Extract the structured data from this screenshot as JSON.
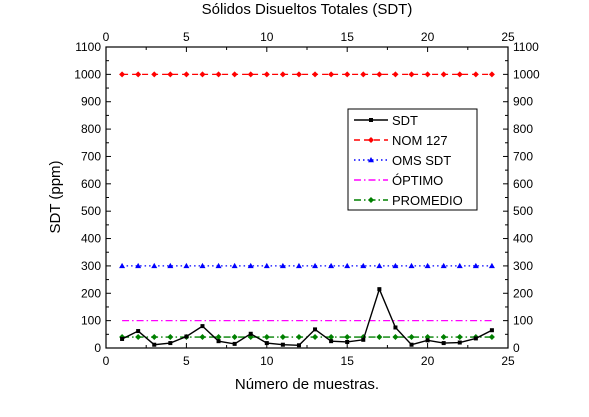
{
  "chart_data": {
    "type": "line",
    "title": "Sólidos Disueltos Totales (SDT)",
    "xlabel": "Número de muestras.",
    "ylabel": "SDT (ppm)",
    "xlim": [
      0,
      25
    ],
    "ylim": [
      0,
      1100
    ],
    "x_ticks": [
      0,
      5,
      10,
      15,
      20,
      25
    ],
    "y_ticks": [
      0,
      100,
      200,
      300,
      400,
      500,
      600,
      700,
      800,
      900,
      1000,
      1100
    ],
    "grid": false,
    "mirror_axes": true,
    "legend_position": "right",
    "x": [
      1,
      2,
      3,
      4,
      5,
      6,
      7,
      8,
      9,
      10,
      11,
      12,
      13,
      14,
      15,
      16,
      17,
      18,
      19,
      20,
      21,
      22,
      23,
      24
    ],
    "series": [
      {
        "name": "SDT",
        "color": "#000000",
        "dash": "solid",
        "marker": "square",
        "values": [
          33,
          62,
          12,
          18,
          42,
          80,
          25,
          15,
          52,
          18,
          12,
          10,
          68,
          25,
          22,
          30,
          215,
          75,
          12,
          28,
          18,
          20,
          35,
          65
        ]
      },
      {
        "name": "NOM 127",
        "color": "#ff0000",
        "dash": "dash",
        "marker": "diamond",
        "values": [
          1000,
          1000,
          1000,
          1000,
          1000,
          1000,
          1000,
          1000,
          1000,
          1000,
          1000,
          1000,
          1000,
          1000,
          1000,
          1000,
          1000,
          1000,
          1000,
          1000,
          1000,
          1000,
          1000,
          1000
        ]
      },
      {
        "name": "OMS SDT",
        "color": "#0000ff",
        "dash": "dot",
        "marker": "triangle",
        "values": [
          300,
          300,
          300,
          300,
          300,
          300,
          300,
          300,
          300,
          300,
          300,
          300,
          300,
          300,
          300,
          300,
          300,
          300,
          300,
          300,
          300,
          300,
          300,
          300
        ]
      },
      {
        "name": "ÓPTIMO",
        "color": "#ff00ff",
        "dash": "dashdot",
        "marker": "none",
        "values": [
          100,
          100,
          100,
          100,
          100,
          100,
          100,
          100,
          100,
          100,
          100,
          100,
          100,
          100,
          100,
          100,
          100,
          100,
          100,
          100,
          100,
          100,
          100,
          100
        ]
      },
      {
        "name": "PROMEDIO",
        "color": "#008000",
        "dash": "dashdot",
        "marker": "diamond",
        "values": [
          40,
          40,
          40,
          40,
          40,
          40,
          40,
          40,
          40,
          40,
          40,
          40,
          40,
          40,
          40,
          40,
          40,
          40,
          40,
          40,
          40,
          40,
          40,
          40
        ]
      }
    ]
  }
}
